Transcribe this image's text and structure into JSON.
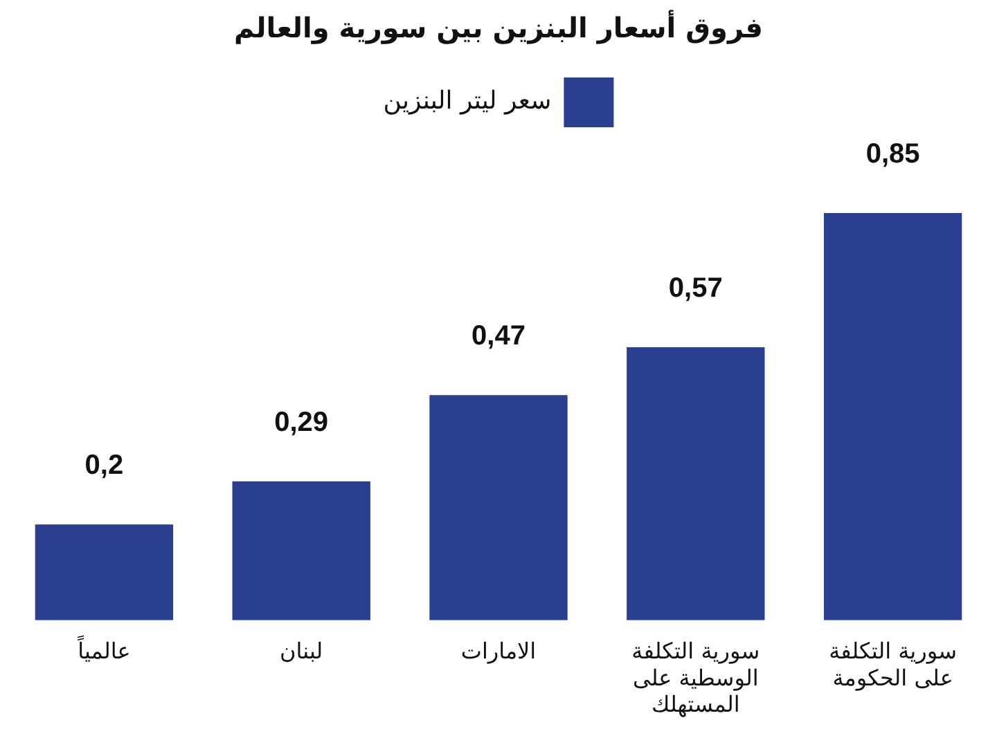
{
  "chart_data": {
    "type": "bar",
    "title": "فروق أسعار البنزين بين سورية والعالم",
    "categories": [
      "عالمياً",
      "لبنان",
      "الامارات",
      "سورية التكلفة\nالوسطية على\nالمستهلك",
      "سورية التكلفة\nعلى الحكومة"
    ],
    "series": [
      {
        "name": "سعر ليتر البنزين",
        "color": "#2b3f91",
        "values": [
          0.2,
          0.29,
          0.47,
          0.57,
          0.85
        ],
        "value_labels": [
          "0,2",
          "0,29",
          "0,47",
          "0,57",
          "0,85"
        ]
      }
    ],
    "legend": "top",
    "grid": false
  }
}
